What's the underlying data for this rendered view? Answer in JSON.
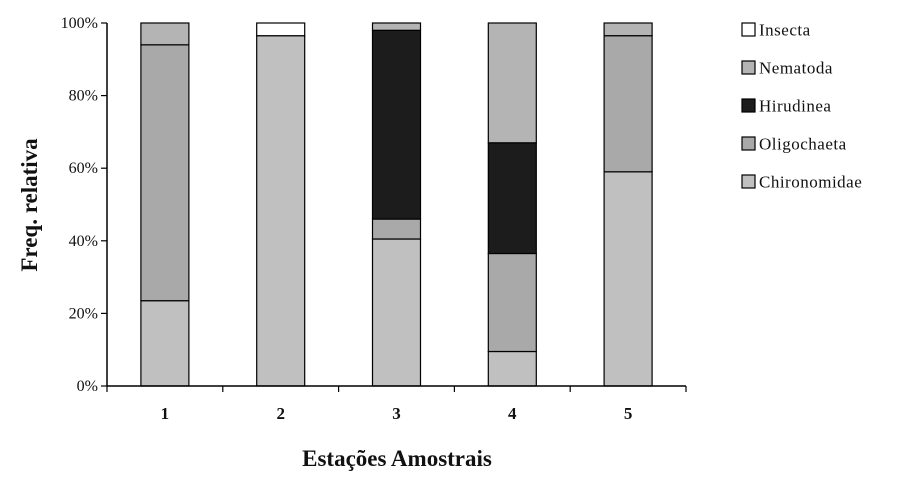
{
  "chart_data": {
    "type": "bar",
    "stacked": true,
    "title": "",
    "xlabel": "Estações Amostrais",
    "ylabel": "Freq. relativa",
    "ylim": [
      0,
      100
    ],
    "yticks": [
      "0%",
      "20%",
      "40%",
      "60%",
      "80%",
      "100%"
    ],
    "grid": false,
    "legend_position": "right",
    "categories": [
      "1",
      "2",
      "3",
      "4",
      "5"
    ],
    "series": [
      {
        "name": "Chironomidae",
        "color": "#c0c0c0",
        "values": [
          23.5,
          96.5,
          40.5,
          9.5,
          59
        ]
      },
      {
        "name": "Oligochaeta",
        "color": "#a9a9a9",
        "values": [
          70.5,
          0,
          5.5,
          27,
          37.5
        ]
      },
      {
        "name": "Hirudinea",
        "color": "#1c1c1c",
        "values": [
          0,
          0,
          52,
          30.5,
          0
        ]
      },
      {
        "name": "Nematoda",
        "color": "#b4b4b4",
        "values": [
          6,
          0,
          2,
          33,
          3.5
        ]
      },
      {
        "name": "Insecta",
        "color": "#ffffff",
        "values": [
          0,
          3.5,
          0,
          0,
          0
        ]
      }
    ],
    "legend_order": [
      "Insecta",
      "Nematoda",
      "Hirudinea",
      "Oligochaeta",
      "Chironomidae"
    ]
  }
}
